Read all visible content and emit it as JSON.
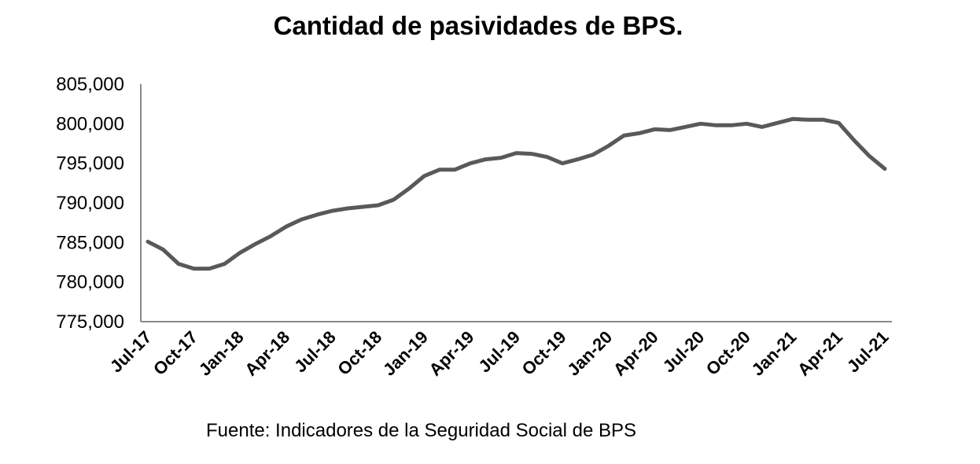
{
  "chart_data": {
    "type": "line",
    "title": "Cantidad de pasividades de BPS.",
    "xlabel": "",
    "ylabel": "",
    "ylim": [
      775000,
      805000
    ],
    "yticks": [
      "775,000",
      "780,000",
      "785,000",
      "790,000",
      "795,000",
      "800,000",
      "805,000"
    ],
    "xtick_labels": [
      "Jul-17",
      "Oct-17",
      "Jan-18",
      "Apr-18",
      "Jul-18",
      "Oct-18",
      "Jan-19",
      "Apr-19",
      "Jul-19",
      "Oct-19",
      "Jan-20",
      "Apr-20",
      "Jul-20",
      "Oct-20",
      "Jan-21",
      "Apr-21",
      "Jul-21"
    ],
    "categories": [
      "Jul-17",
      "Aug-17",
      "Sep-17",
      "Oct-17",
      "Nov-17",
      "Dec-17",
      "Jan-18",
      "Feb-18",
      "Mar-18",
      "Apr-18",
      "May-18",
      "Jun-18",
      "Jul-18",
      "Aug-18",
      "Sep-18",
      "Oct-18",
      "Nov-18",
      "Dec-18",
      "Jan-19",
      "Feb-19",
      "Mar-19",
      "Apr-19",
      "May-19",
      "Jun-19",
      "Jul-19",
      "Aug-19",
      "Sep-19",
      "Oct-19",
      "Nov-19",
      "Dec-19",
      "Jan-20",
      "Feb-20",
      "Mar-20",
      "Apr-20",
      "May-20",
      "Jun-20",
      "Jul-20",
      "Aug-20",
      "Sep-20",
      "Oct-20",
      "Nov-20",
      "Dec-20",
      "Jan-21",
      "Feb-21",
      "Mar-21",
      "Apr-21",
      "May-21",
      "Jun-21",
      "Jul-21"
    ],
    "series": [
      {
        "color": "#595959",
        "values": [
          785100,
          784100,
          782300,
          781700,
          781700,
          782300,
          783700,
          784800,
          785800,
          787000,
          787900,
          788500,
          789000,
          789300,
          789500,
          789700,
          790400,
          791800,
          793400,
          794200,
          794200,
          795000,
          795500,
          795700,
          796300,
          796200,
          795800,
          795000,
          795500,
          796100,
          797200,
          798500,
          798800,
          799300,
          799200,
          799600,
          800000,
          799800,
          799800,
          800000,
          799600,
          800100,
          800600,
          800500,
          800500,
          800100,
          797900,
          795900,
          794300
        ]
      }
    ]
  },
  "source_note": "Fuente: Indicadores de la Seguridad Social de BPS"
}
